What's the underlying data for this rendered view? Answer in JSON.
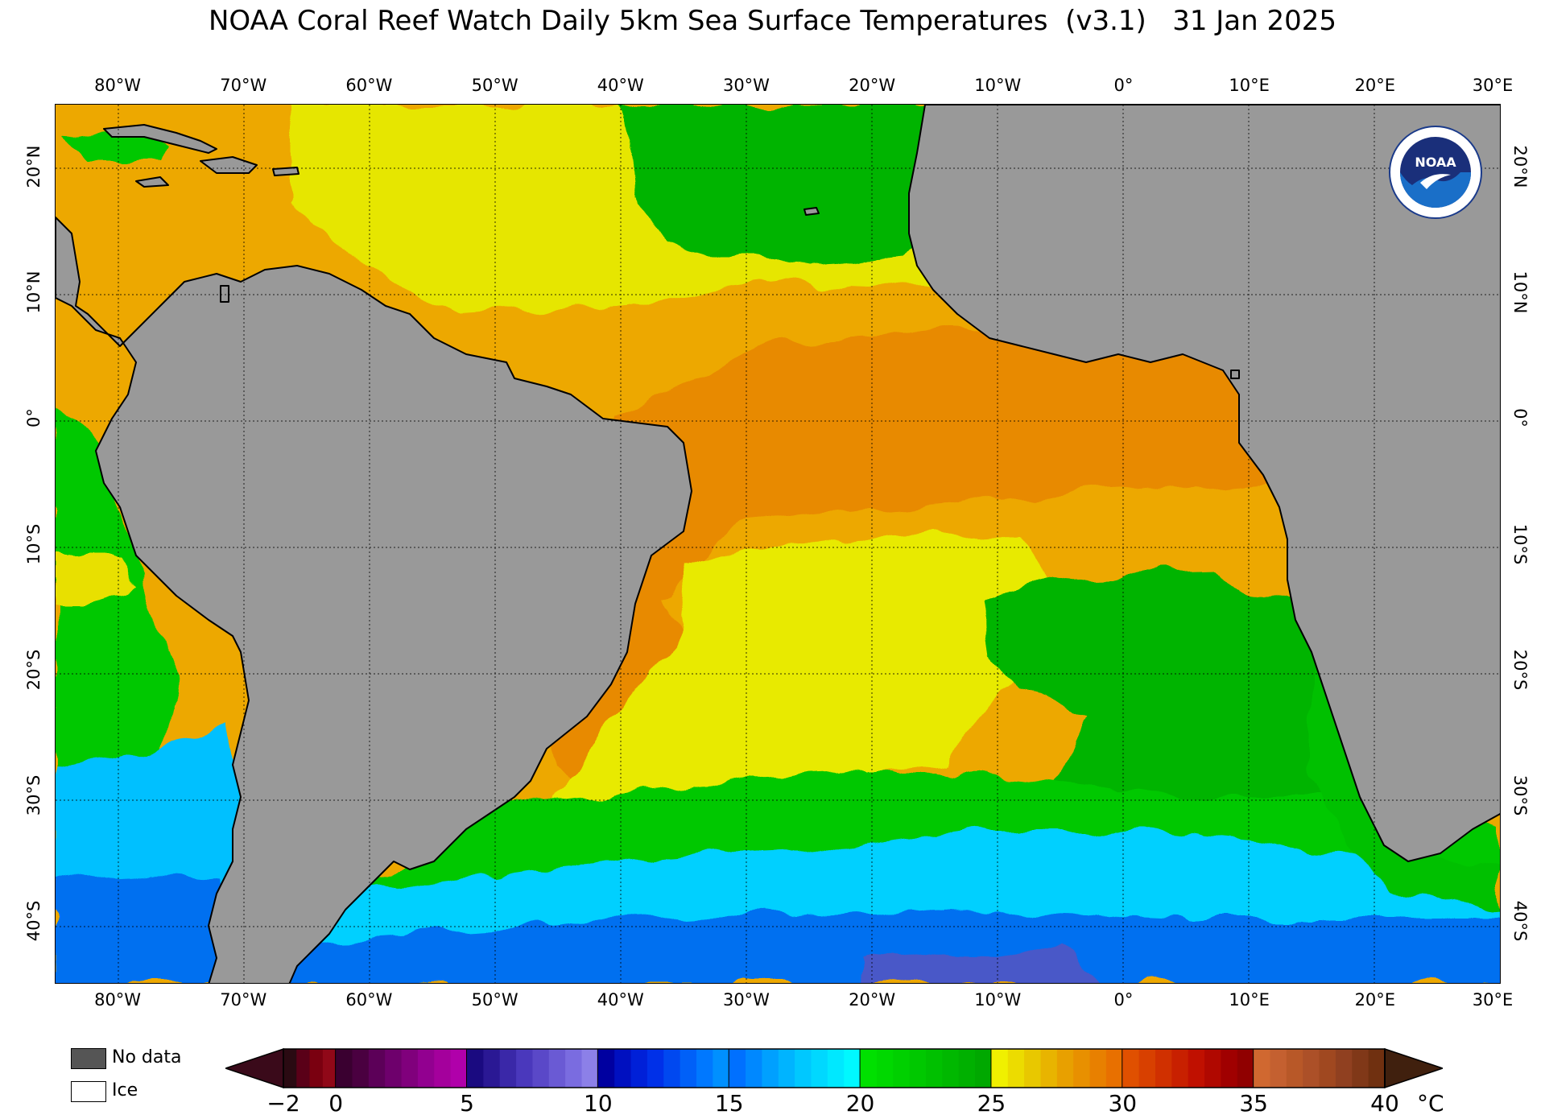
{
  "title": "NOAA Coral Reef Watch Daily 5km Sea Surface Temperatures  (v3.1)   31 Jan 2025",
  "map": {
    "lon_labels": [
      "80°W",
      "70°W",
      "60°W",
      "50°W",
      "40°W",
      "30°W",
      "20°W",
      "10°W",
      "0°",
      "10°E",
      "20°E",
      "30°E"
    ],
    "lat_labels_left": [
      "20°N",
      "10°N",
      "0°",
      "10°S",
      "20°S",
      "30°S",
      "40°S"
    ],
    "lat_labels_right": [
      "20°N",
      "10°N",
      "0°",
      "10°S",
      "20°S",
      "30°S",
      "40°S"
    ],
    "colors": {
      "land": "#999999",
      "warm_orange": "#e88a00",
      "orange_yellow": "#eda800",
      "yellow": "#e8f000",
      "green": "#00c800",
      "light_green": "#20e000",
      "cyan": "#00c8ff",
      "light_blue": "#0096ff",
      "blue": "#0040e6",
      "purple": "#6060c8"
    }
  },
  "logo": {
    "text": "NOAA",
    "icon": "noaa-logo-icon"
  },
  "legend": {
    "no_data_label": "No data",
    "no_data_color": "#555555",
    "ice_label": "Ice",
    "ice_color": "#ffffff"
  },
  "colorbar": {
    "ticks": [
      "−2",
      "0",
      "5",
      "10",
      "15",
      "20",
      "25",
      "30",
      "35",
      "40"
    ],
    "unit": "°C",
    "segments": [
      [
        "#2a0a12",
        "#5a0018",
        "#7a0010",
        "#900818"
      ],
      [
        "#3a0030",
        "#4a0040",
        "#5c0058",
        "#6e006c",
        "#80007c",
        "#920090",
        "#a4009c",
        "#b000aa"
      ],
      [
        "#1a0a80",
        "#2a1894",
        "#3a28a8",
        "#4a38bc",
        "#5a48c8",
        "#6a5ad4",
        "#7a6ce0",
        "#8c80e8"
      ],
      [
        "#0000a0",
        "#0010c0",
        "#0020d8",
        "#0030e8",
        "#0048f0",
        "#0060f8",
        "#0078ff",
        "#0090ff"
      ],
      [
        "#0070ff",
        "#0088ff",
        "#00a0ff",
        "#00b4ff",
        "#00c8ff",
        "#00d8ff",
        "#00e8ff",
        "#00f8ff"
      ],
      [
        "#00e000",
        "#00d800",
        "#00d000",
        "#00c800",
        "#00c000",
        "#00b800",
        "#00b000",
        "#00a800"
      ],
      [
        "#f0f000",
        "#ecdc00",
        "#e8c800",
        "#e8b400",
        "#e8a000",
        "#e89000",
        "#e88000",
        "#e87000"
      ],
      [
        "#e05000",
        "#d84000",
        "#d03000",
        "#c82000",
        "#c01000",
        "#b00800",
        "#a00000",
        "#900000"
      ],
      [
        "#d06830",
        "#c46030",
        "#b85828",
        "#ac5028",
        "#a04820",
        "#904020",
        "#803818",
        "#703010"
      ]
    ],
    "under_color": "#3a0a1a",
    "over_color": "#40200e"
  }
}
